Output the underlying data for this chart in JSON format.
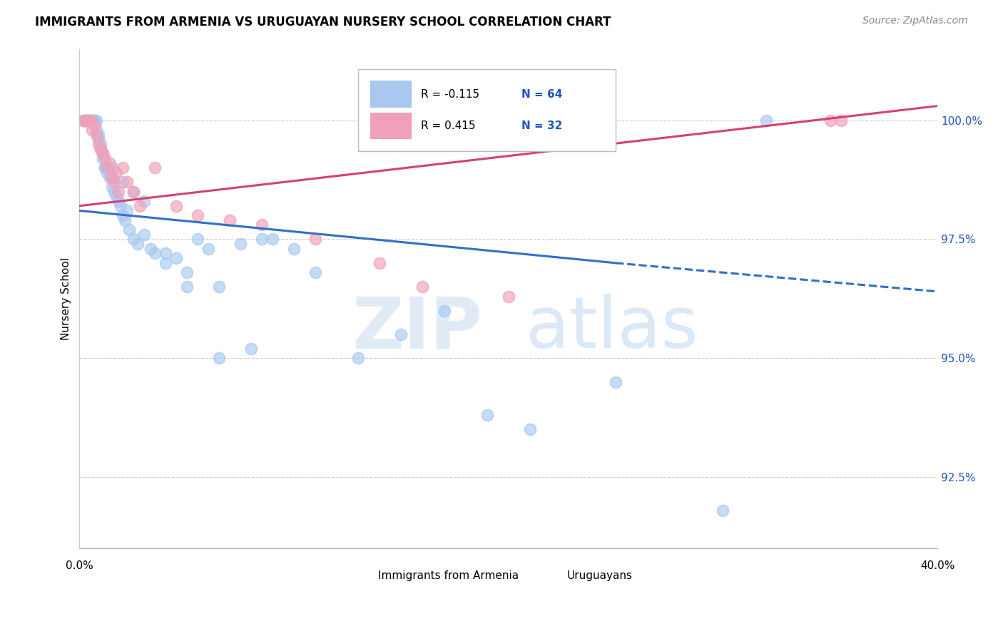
{
  "title": "IMMIGRANTS FROM ARMENIA VS URUGUAYAN NURSERY SCHOOL CORRELATION CHART",
  "source": "Source: ZipAtlas.com",
  "ylabel": "Nursery School",
  "yticks": [
    92.5,
    95.0,
    97.5,
    100.0
  ],
  "ytick_labels": [
    "92.5%",
    "95.0%",
    "97.5%",
    "100.0%"
  ],
  "xmin": 0.0,
  "xmax": 40.0,
  "ymin": 91.0,
  "ymax": 101.5,
  "blue_color": "#A8C8F0",
  "pink_color": "#F0A0B8",
  "blue_line_color": "#3070C8",
  "pink_line_color": "#D84070",
  "blue_scatter_x": [
    0.2,
    0.3,
    0.4,
    0.5,
    0.5,
    0.6,
    0.7,
    0.8,
    0.8,
    0.9,
    1.0,
    1.0,
    1.1,
    1.1,
    1.2,
    1.3,
    1.4,
    1.5,
    1.5,
    1.6,
    1.7,
    1.8,
    1.9,
    2.0,
    2.1,
    2.2,
    2.3,
    2.5,
    2.7,
    3.0,
    3.3,
    3.5,
    4.0,
    4.5,
    5.0,
    5.5,
    6.0,
    6.5,
    7.5,
    8.5,
    9.0,
    10.0,
    11.0,
    13.0,
    15.0,
    17.0,
    19.0,
    21.0,
    25.0,
    30.0,
    0.3,
    0.5,
    0.7,
    0.9,
    1.2,
    1.5,
    2.0,
    2.5,
    3.0,
    4.0,
    5.0,
    6.5,
    8.0,
    32.0
  ],
  "blue_scatter_y": [
    100.0,
    100.0,
    100.0,
    100.0,
    100.0,
    100.0,
    100.0,
    100.0,
    99.8,
    99.7,
    99.5,
    99.4,
    99.3,
    99.2,
    99.0,
    98.9,
    98.8,
    98.6,
    98.8,
    98.5,
    98.4,
    98.3,
    98.2,
    98.0,
    97.9,
    98.1,
    97.7,
    97.5,
    97.4,
    97.6,
    97.3,
    97.2,
    97.0,
    97.1,
    96.8,
    97.5,
    97.3,
    96.5,
    97.4,
    97.5,
    97.5,
    97.3,
    96.8,
    95.0,
    95.5,
    96.0,
    93.8,
    93.5,
    94.5,
    91.8,
    100.0,
    100.0,
    100.0,
    99.6,
    99.0,
    99.0,
    98.7,
    98.5,
    98.3,
    97.2,
    96.5,
    95.0,
    95.2,
    100.0
  ],
  "pink_scatter_x": [
    0.2,
    0.3,
    0.4,
    0.5,
    0.6,
    0.7,
    0.8,
    0.9,
    1.0,
    1.1,
    1.2,
    1.3,
    1.4,
    1.5,
    1.6,
    1.7,
    1.8,
    2.0,
    2.2,
    2.5,
    2.8,
    3.5,
    4.5,
    5.5,
    7.0,
    8.5,
    11.0,
    14.0,
    16.0,
    20.0,
    35.0,
    35.5
  ],
  "pink_scatter_y": [
    100.0,
    100.0,
    100.0,
    100.0,
    99.8,
    99.9,
    99.7,
    99.5,
    99.4,
    99.3,
    99.2,
    99.0,
    99.1,
    98.8,
    98.7,
    98.9,
    98.5,
    99.0,
    98.7,
    98.5,
    98.2,
    99.0,
    98.2,
    98.0,
    97.9,
    97.8,
    97.5,
    97.0,
    96.5,
    96.3,
    100.0,
    100.0
  ],
  "blue_line_x0": 0.0,
  "blue_line_x1": 25.0,
  "blue_line_y0": 98.1,
  "blue_line_y1": 97.0,
  "blue_dash_x0": 25.0,
  "blue_dash_x1": 40.0,
  "blue_dash_y0": 97.0,
  "blue_dash_y1": 96.4,
  "pink_line_x0": 0.0,
  "pink_line_x1": 40.0,
  "pink_line_y0": 98.2,
  "pink_line_y1": 100.3
}
